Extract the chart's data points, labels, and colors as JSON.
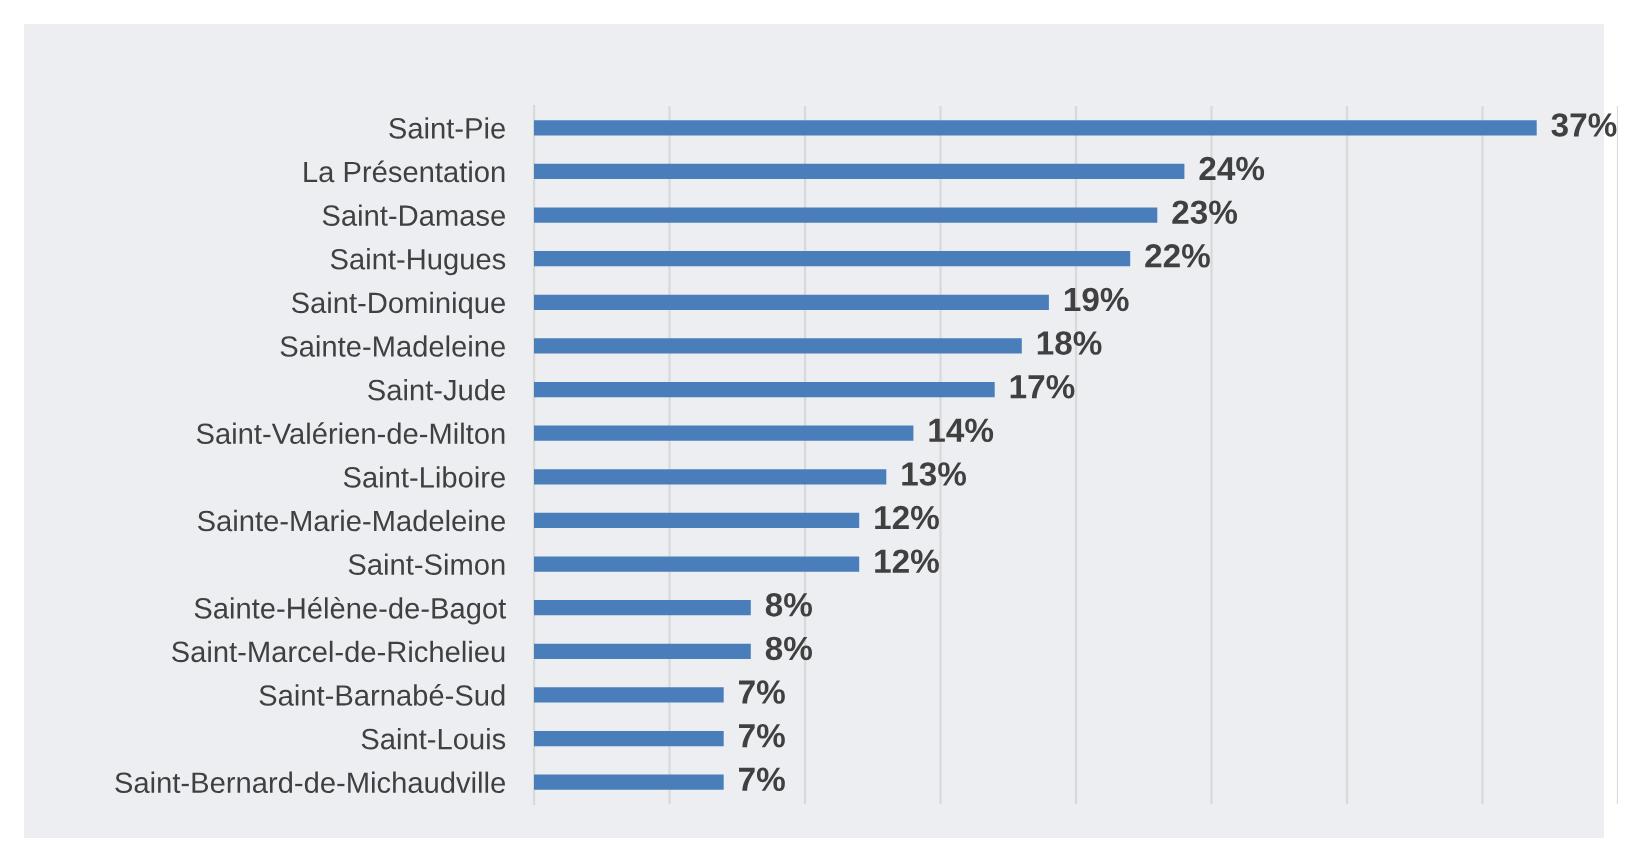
{
  "chart_data": {
    "type": "bar",
    "orientation": "horizontal",
    "categories": [
      "Saint-Pie",
      "La Présentation",
      "Saint-Damase",
      "Saint-Hugues",
      "Saint-Dominique",
      "Sainte-Madeleine",
      "Saint-Jude",
      "Saint-Valérien-de-Milton",
      "Saint-Liboire",
      "Sainte-Marie-Madeleine",
      "Saint-Simon",
      "Sainte-Hélène-de-Bagot",
      "Saint-Marcel-de-Richelieu",
      "Saint-Barnabé-Sud",
      "Saint-Louis",
      "Saint-Bernard-de-Michaudville"
    ],
    "values": [
      37,
      24,
      23,
      22,
      19,
      18,
      17,
      14,
      13,
      12,
      12,
      8,
      8,
      7,
      7,
      7
    ],
    "value_labels": [
      "37%",
      "24%",
      "23%",
      "22%",
      "19%",
      "18%",
      "17%",
      "14%",
      "13%",
      "12%",
      "12%",
      "8%",
      "8%",
      "7%",
      "7%",
      "7%"
    ],
    "color": "#4a7ebb",
    "xlim": [
      0,
      40
    ],
    "xticks": [
      {
        "value": 0,
        "label": null
      },
      {
        "value": 5,
        "label": null
      },
      {
        "value": 10,
        "label": null
      },
      {
        "value": 15,
        "label": null
      },
      {
        "value": 20,
        "label": null
      },
      {
        "value": 25,
        "label": null
      },
      {
        "value": 30,
        "label": null
      },
      {
        "value": 35,
        "label": null
      },
      {
        "value": 40,
        "label": null
      }
    ],
    "grid": "x",
    "tick_labels": "y",
    "legend": false
  }
}
